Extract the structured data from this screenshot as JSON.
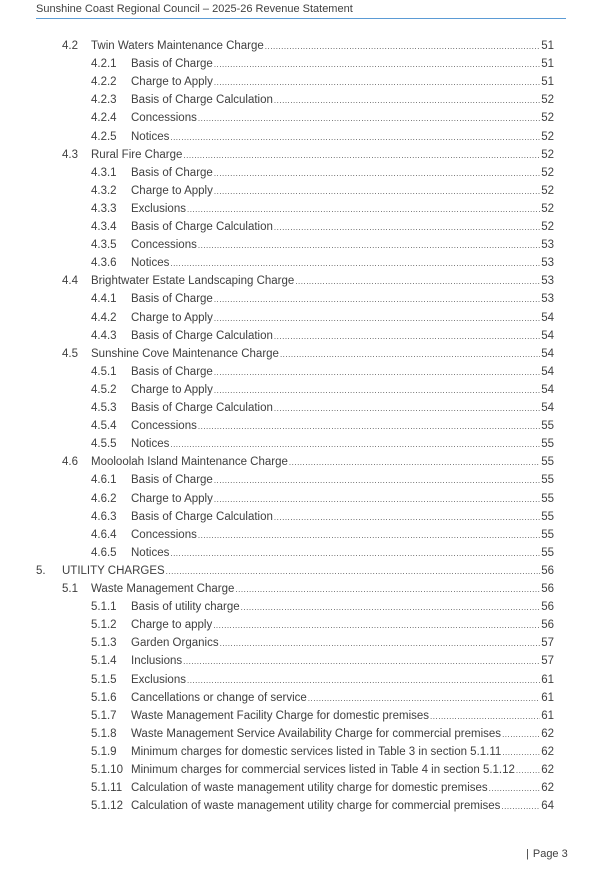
{
  "header": {
    "title": "Sunshine Coast Regional Council – 2025-26 Revenue Statement"
  },
  "toc": [
    {
      "level": 2,
      "num": "4.2",
      "title": "Twin Waters Maintenance Charge",
      "page": "51"
    },
    {
      "level": 3,
      "num": "4.2.1",
      "title": "Basis of Charge",
      "page": "51"
    },
    {
      "level": 3,
      "num": "4.2.2",
      "title": "Charge to Apply",
      "page": "51"
    },
    {
      "level": 3,
      "num": "4.2.3",
      "title": "Basis of Charge Calculation",
      "page": "52"
    },
    {
      "level": 3,
      "num": "4.2.4",
      "title": "Concessions",
      "page": "52"
    },
    {
      "level": 3,
      "num": "4.2.5",
      "title": "Notices",
      "page": "52"
    },
    {
      "level": 2,
      "num": "4.3",
      "title": "Rural Fire Charge",
      "page": "52"
    },
    {
      "level": 3,
      "num": "4.3.1",
      "title": "Basis of Charge",
      "page": "52"
    },
    {
      "level": 3,
      "num": "4.3.2",
      "title": "Charge to Apply",
      "page": "52"
    },
    {
      "level": 3,
      "num": "4.3.3",
      "title": "Exclusions",
      "page": "52"
    },
    {
      "level": 3,
      "num": "4.3.4",
      "title": "Basis of Charge Calculation",
      "page": "52"
    },
    {
      "level": 3,
      "num": "4.3.5",
      "title": "Concessions",
      "page": "53"
    },
    {
      "level": 3,
      "num": "4.3.6",
      "title": "Notices",
      "page": "53"
    },
    {
      "level": 2,
      "num": "4.4",
      "title": "Brightwater Estate Landscaping Charge",
      "page": "53"
    },
    {
      "level": 3,
      "num": "4.4.1",
      "title": "Basis of Charge",
      "page": "53"
    },
    {
      "level": 3,
      "num": "4.4.2",
      "title": "Charge to Apply",
      "page": "54"
    },
    {
      "level": 3,
      "num": "4.4.3",
      "title": "Basis of Charge Calculation",
      "page": "54"
    },
    {
      "level": 2,
      "num": "4.5",
      "title": "Sunshine Cove Maintenance Charge",
      "page": "54"
    },
    {
      "level": 3,
      "num": "4.5.1",
      "title": "Basis of Charge",
      "page": "54"
    },
    {
      "level": 3,
      "num": "4.5.2",
      "title": "Charge to Apply",
      "page": "54"
    },
    {
      "level": 3,
      "num": "4.5.3",
      "title": "Basis of Charge Calculation",
      "page": "54"
    },
    {
      "level": 3,
      "num": "4.5.4",
      "title": "Concessions",
      "page": "55"
    },
    {
      "level": 3,
      "num": "4.5.5",
      "title": "Notices",
      "page": "55"
    },
    {
      "level": 2,
      "num": "4.6",
      "title": "Mooloolah Island Maintenance Charge",
      "page": "55"
    },
    {
      "level": 3,
      "num": "4.6.1",
      "title": "Basis of Charge",
      "page": "55"
    },
    {
      "level": 3,
      "num": "4.6.2",
      "title": "Charge to Apply",
      "page": "55"
    },
    {
      "level": 3,
      "num": "4.6.3",
      "title": "Basis of Charge Calculation",
      "page": "55"
    },
    {
      "level": 3,
      "num": "4.6.4",
      "title": "Concessions",
      "page": "55"
    },
    {
      "level": 3,
      "num": "4.6.5",
      "title": "Notices",
      "page": "55"
    },
    {
      "level": 1,
      "num": "5.",
      "title": "UTILITY CHARGES",
      "page": "56"
    },
    {
      "level": 2,
      "num": "5.1",
      "title": "Waste Management Charge",
      "page": "56"
    },
    {
      "level": 3,
      "num": "5.1.1",
      "title": "Basis of utility charge",
      "page": "56"
    },
    {
      "level": 3,
      "num": "5.1.2",
      "title": "Charge to apply",
      "page": "56"
    },
    {
      "level": 3,
      "num": "5.1.3",
      "title": "Garden Organics",
      "page": "57"
    },
    {
      "level": 3,
      "num": "5.1.4",
      "title": "Inclusions",
      "page": "57"
    },
    {
      "level": 3,
      "num": "5.1.5",
      "title": "Exclusions",
      "page": "61"
    },
    {
      "level": 3,
      "num": "5.1.6",
      "title": "Cancellations or change of service",
      "page": "61"
    },
    {
      "level": 3,
      "num": "5.1.7",
      "title": "Waste Management Facility Charge for domestic premises",
      "page": "61"
    },
    {
      "level": 3,
      "num": "5.1.8",
      "title": "Waste Management Service Availability Charge for commercial premises",
      "page": "62"
    },
    {
      "level": 3,
      "num": "5.1.9",
      "title": "Minimum charges for domestic services listed in Table 3 in section 5.1.11",
      "page": "62"
    },
    {
      "level": 3,
      "num": "5.1.10",
      "title": "Minimum charges for commercial services listed in Table 4 in section 5.1.12",
      "page": "62"
    },
    {
      "level": 3,
      "num": "5.1.11",
      "title": "Calculation of waste management utility charge for domestic premises",
      "page": "62"
    },
    {
      "level": 3,
      "num": "5.1.12",
      "title": "Calculation of waste management utility charge for commercial premises",
      "page": "64"
    }
  ],
  "footer": {
    "bar": "|",
    "page_label": "Page 3"
  },
  "colors": {
    "rule": "#5b9bd5",
    "text": "#404040"
  }
}
